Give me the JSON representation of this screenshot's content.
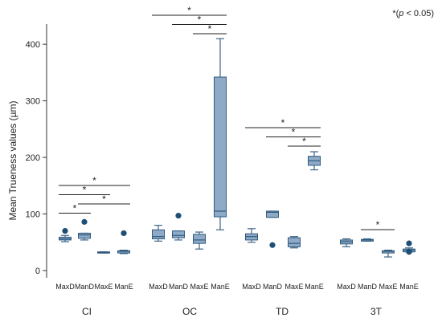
{
  "chart_data": {
    "type": "box",
    "ylabel": "Mean Trueness values (µm)",
    "ylim": [
      -10,
      430
    ],
    "yticks": [
      0,
      100,
      200,
      300,
      400
    ],
    "significance_note": {
      "prefix": "*(",
      "p_symbol": "p",
      "suffix": " < 0.05)"
    },
    "colors": {
      "box_fill": "#8EAAC6",
      "box_stroke": "#2F5A7E",
      "whisker": "#3F6585",
      "outlier": "#1C4E76",
      "sig_line": "#222222",
      "axis": "#333333"
    },
    "groups": [
      {
        "name": "CI",
        "series": [
          {
            "label": "MaxD",
            "whislo": 51,
            "q1": 54,
            "med": 56,
            "q3": 59,
            "whishi": 62,
            "fliers": [
              70
            ]
          },
          {
            "label": "ManD",
            "whislo": 54,
            "q1": 57,
            "med": 63,
            "q3": 66,
            "whishi": 66,
            "fliers": [
              86
            ]
          },
          {
            "label": "MaxE",
            "whislo": 31,
            "q1": 31,
            "med": 32,
            "q3": 33,
            "whishi": 33,
            "fliers": []
          },
          {
            "label": "ManE",
            "whislo": 30,
            "q1": 31,
            "med": 34,
            "q3": 35,
            "whishi": 36,
            "fliers": [
              66
            ]
          }
        ],
        "significance": [
          {
            "from": 0,
            "to": 1,
            "label": "*"
          },
          {
            "from": 0,
            "to": 2,
            "label": "*"
          },
          {
            "from": 0,
            "to": 3,
            "label": "*"
          },
          {
            "from": 1,
            "to": 3,
            "label": "*"
          }
        ]
      },
      {
        "name": "OC",
        "series": [
          {
            "label": "MaxD",
            "whislo": 52,
            "q1": 56,
            "med": 60,
            "q3": 72,
            "whishi": 80,
            "fliers": []
          },
          {
            "label": "ManD",
            "whislo": 54,
            "q1": 58,
            "med": 62,
            "q3": 70,
            "whishi": 70,
            "fliers": [
              97
            ]
          },
          {
            "label": "MaxE",
            "whislo": 38,
            "q1": 48,
            "med": 54,
            "q3": 64,
            "whishi": 68,
            "fliers": []
          },
          {
            "label": "ManE",
            "whislo": 72,
            "q1": 95,
            "med": 105,
            "q3": 342,
            "whishi": 410,
            "fliers": []
          }
        ],
        "significance": [
          {
            "from": 0,
            "to": 3,
            "label": "*"
          },
          {
            "from": 1,
            "to": 3,
            "label": "*"
          },
          {
            "from": 2,
            "to": 3,
            "label": "*"
          }
        ]
      },
      {
        "name": "TD",
        "series": [
          {
            "label": "MaxD",
            "whislo": 50,
            "q1": 54,
            "med": 60,
            "q3": 65,
            "whishi": 74,
            "fliers": []
          },
          {
            "label": "ManD",
            "whislo": 94,
            "q1": 94,
            "med": 103,
            "q3": 105,
            "whishi": 105,
            "fliers": [
              45
            ]
          },
          {
            "label": "MaxE",
            "whislo": 40,
            "q1": 42,
            "med": 48,
            "q3": 58,
            "whishi": 60,
            "fliers": []
          },
          {
            "label": "ManE",
            "whislo": 178,
            "q1": 186,
            "med": 194,
            "q3": 202,
            "whishi": 210,
            "fliers": []
          }
        ],
        "significance": [
          {
            "from": 0,
            "to": 3,
            "label": "*"
          },
          {
            "from": 1,
            "to": 3,
            "label": "*"
          },
          {
            "from": 2,
            "to": 3,
            "label": "*"
          }
        ]
      },
      {
        "name": "3T",
        "series": [
          {
            "label": "MaxD",
            "whislo": 42,
            "q1": 47,
            "med": 51,
            "q3": 54,
            "whishi": 56,
            "fliers": []
          },
          {
            "label": "ManD",
            "whislo": 52,
            "q1": 52,
            "med": 54,
            "q3": 55,
            "whishi": 56,
            "fliers": []
          },
          {
            "label": "MaxE",
            "whislo": 24,
            "q1": 31,
            "med": 34,
            "q3": 35,
            "whishi": 36,
            "fliers": []
          },
          {
            "label": "ManE",
            "whislo": 33,
            "q1": 33,
            "med": 36,
            "q3": 38,
            "whishi": 40,
            "fliers": [
              48,
              33
            ]
          }
        ],
        "significance": [
          {
            "from": 1,
            "to": 2,
            "label": "*"
          }
        ]
      }
    ]
  }
}
